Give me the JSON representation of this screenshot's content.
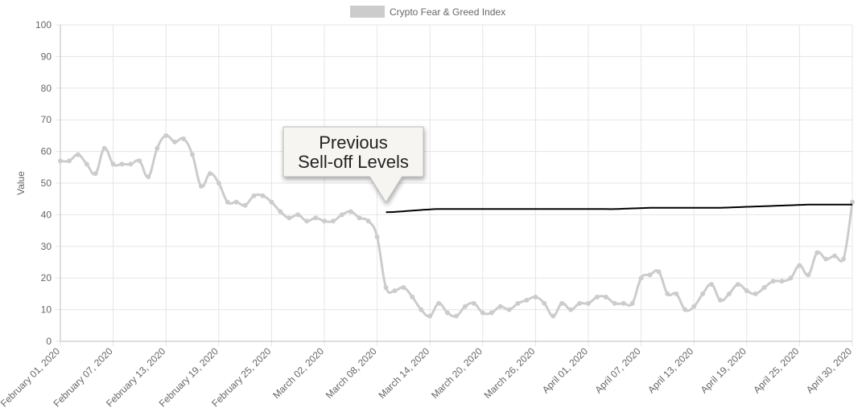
{
  "chart_data": {
    "type": "line",
    "title": "",
    "xlabel": "",
    "ylabel": "Value",
    "ylim": [
      0,
      100
    ],
    "yticks": [
      0,
      10,
      20,
      30,
      40,
      50,
      60,
      70,
      80,
      90,
      100
    ],
    "grid": true,
    "legend_position": "top-center",
    "x_tick_labels": [
      "February 01, 2020",
      "February 07, 2020",
      "February 13, 2020",
      "February 19, 2020",
      "February 25, 2020",
      "March 02, 2020",
      "March 08, 2020",
      "March 14, 2020",
      "March 20, 2020",
      "March 26, 2020",
      "April 01, 2020",
      "April 07, 2020",
      "April 13, 2020",
      "April 19, 2020",
      "April 25, 2020",
      "April 30, 2020"
    ],
    "x_start": "2020-02-01",
    "x_end": "2020-04-30",
    "series": [
      {
        "name": "Crypto Fear & Greed Index",
        "color": "#cccccc",
        "values": [
          57,
          57,
          59,
          56,
          53,
          61,
          56,
          56,
          56,
          57,
          52,
          61,
          65,
          63,
          64,
          59,
          49,
          53,
          50,
          44,
          44,
          43,
          46,
          46,
          44,
          41,
          39,
          40,
          38,
          39,
          38,
          38,
          40,
          41,
          39,
          38,
          33,
          17,
          16,
          17,
          14,
          10,
          8,
          12,
          9,
          8,
          11,
          12,
          9,
          9,
          11,
          10,
          12,
          13,
          14,
          12,
          8,
          12,
          10,
          12,
          12,
          14,
          14,
          12,
          12,
          12,
          20,
          21,
          22,
          15,
          15,
          10,
          11,
          15,
          18,
          13,
          15,
          18,
          16,
          15,
          17,
          19,
          19,
          20,
          24,
          21,
          28,
          26,
          27,
          26,
          44
        ]
      },
      {
        "color": "#000000",
        "start_index": 37,
        "values": [
          40.8,
          40.9,
          41.1,
          41.3,
          41.5,
          41.7,
          41.8,
          41.8,
          41.8,
          41.8,
          41.8,
          41.8,
          41.8,
          41.8,
          41.8,
          41.8,
          41.8,
          41.8,
          41.8,
          41.8,
          41.8,
          41.8,
          41.8,
          41.8,
          41.8,
          41.8,
          41.8,
          41.9,
          42,
          42.1,
          42.2,
          42.2,
          42.2,
          42.2,
          42.2,
          42.2,
          42.2,
          42.2,
          42.2,
          42.3,
          42.4,
          42.5,
          42.6,
          42.7,
          42.8,
          42.9,
          43,
          43.1,
          43.2,
          43.2,
          43.2,
          43.2,
          43.2,
          43.2
        ]
      }
    ],
    "annotation": {
      "text_lines": [
        "Previous",
        "Sell-off Levels"
      ],
      "pointer_index": 37
    }
  }
}
